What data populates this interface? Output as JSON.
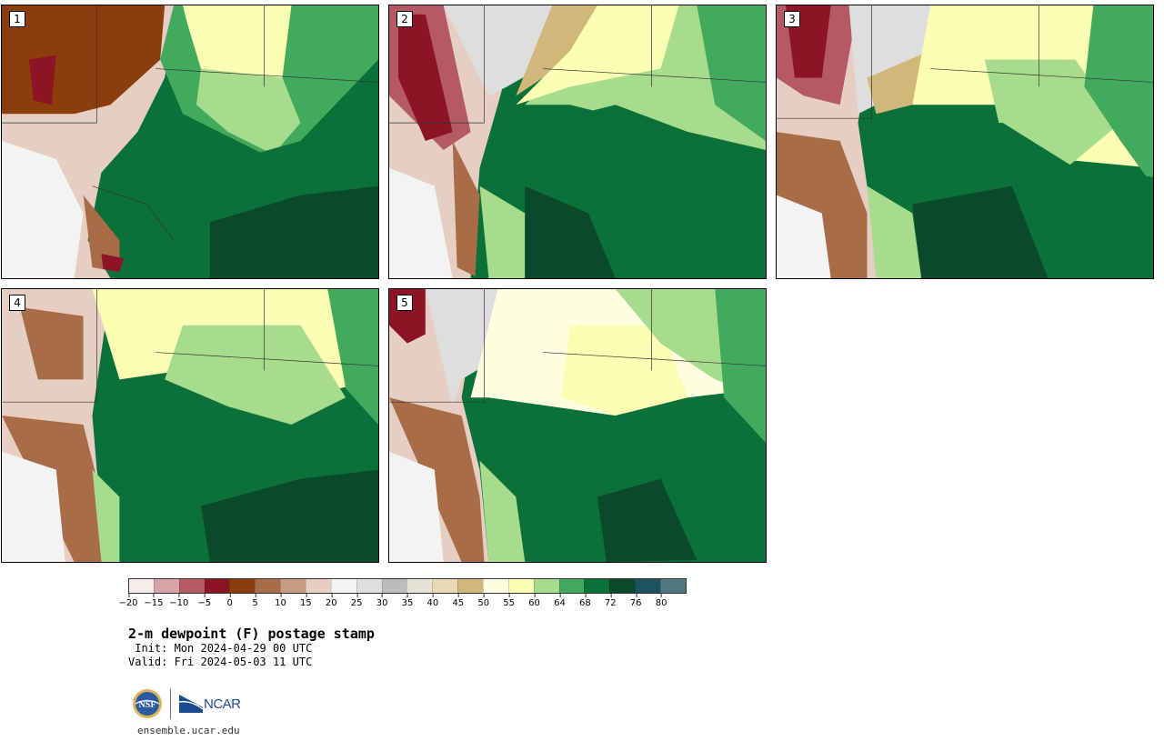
{
  "panels": [
    {
      "label": "1"
    },
    {
      "label": "2"
    },
    {
      "label": "3"
    },
    {
      "label": "4"
    },
    {
      "label": "5"
    }
  ],
  "colorbar": {
    "colors": [
      "#f7eceb",
      "#d7a3a6",
      "#b45a62",
      "#8c1424",
      "#8b3e0b",
      "#a86c48",
      "#c69c80",
      "#e6cfc2",
      "#f3f3f3",
      "#dedede",
      "#bcbcbc",
      "#e5e3d6",
      "#e6d9b4",
      "#d1b77a",
      "#fffde0",
      "#fafdb2",
      "#a6dc8c",
      "#43a95c",
      "#0a7238",
      "#0a4a2a",
      "#1d5360",
      "#50787f"
    ],
    "ticks": [
      "−20",
      "−15",
      "−10",
      "−5",
      "0",
      "5",
      "10",
      "15",
      "20",
      "25",
      "30",
      "35",
      "40",
      "45",
      "50",
      "55",
      "60",
      "64",
      "68",
      "72",
      "76",
      "80"
    ]
  },
  "title": "2-m dewpoint (F) postage stamp",
  "init": " Init: Mon 2024-04-29 00 UTC",
  "valid": "Valid: Fri 2024-05-03 11 UTC",
  "logos": {
    "nsf": "NSF",
    "ncar": "NCAR"
  },
  "website": "ensemble.ucar.edu"
}
